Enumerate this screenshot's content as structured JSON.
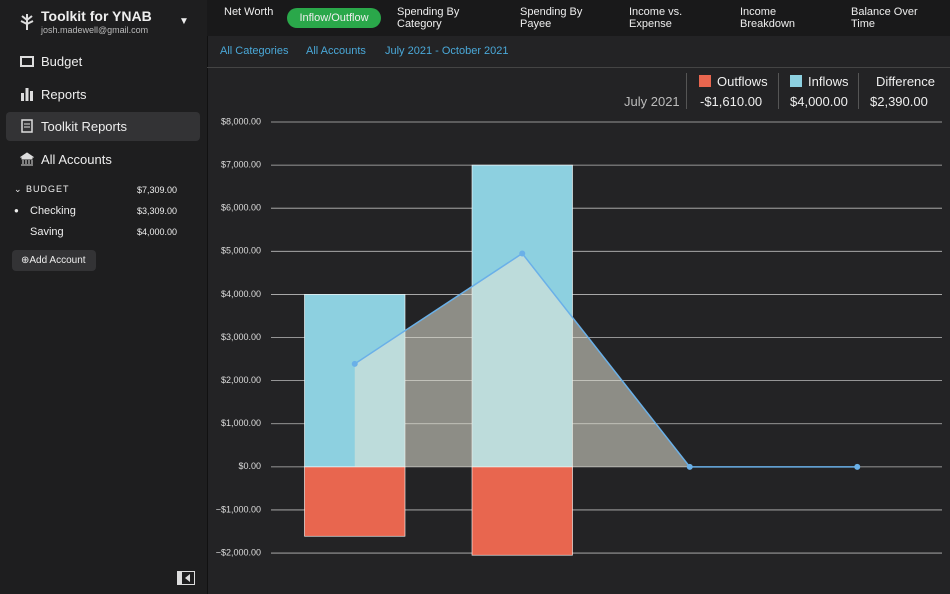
{
  "sidebar": {
    "app_title": "Toolkit for YNAB",
    "email": "josh.madewell@gmail.com",
    "nav": [
      "Budget",
      "Reports",
      "Toolkit Reports",
      "All Accounts"
    ],
    "budget_label": "BUDGET",
    "budget_total": "$7,309.00",
    "accounts": [
      {
        "name": "Checking",
        "balance": "$3,309.00"
      },
      {
        "name": "Saving",
        "balance": "$4,000.00"
      }
    ],
    "add_account": "Add Account"
  },
  "tabs": [
    "Net Worth",
    "Inflow/Outflow",
    "Spending By Category",
    "Spending By Payee",
    "Income vs. Expense",
    "Income Breakdown",
    "Balance Over Time"
  ],
  "filters": [
    "All Categories",
    "All Accounts",
    "July 2021 - October 2021"
  ],
  "summary": {
    "period": "July 2021",
    "values": [
      "-$1,610.00",
      "$4,000.00",
      "$2,390.00"
    ]
  },
  "chart_data": {
    "type": "bar",
    "categories": [
      null,
      null,
      null,
      null
    ],
    "series": [
      {
        "name": "Outflows",
        "color": "#e8664f",
        "values": [
          -1610,
          -2050,
          0,
          0
        ]
      },
      {
        "name": "Inflows",
        "color": "#8dd0e0",
        "values": [
          4000,
          7000,
          0,
          0
        ]
      },
      {
        "name": "Difference",
        "type": "line",
        "color": "#6ab0e8",
        "values": [
          2390,
          4950,
          0,
          0
        ]
      }
    ],
    "ylim": [
      -2950,
      8000
    ],
    "yticks": [
      {
        "value": -2000,
        "label": "−$2,000.00"
      },
      {
        "value": -1000,
        "label": "−$1,000.00"
      },
      {
        "value": 0,
        "label": "$0.00"
      },
      {
        "value": 1000,
        "label": "$1,000.00"
      },
      {
        "value": 2000,
        "label": "$2,000.00"
      },
      {
        "value": 3000,
        "label": "$3,000.00"
      },
      {
        "value": 4000,
        "label": "$4,000.00"
      },
      {
        "value": 5000,
        "label": "$5,000.00"
      },
      {
        "value": 6000,
        "label": "$6,000.00"
      },
      {
        "value": 7000,
        "label": "$7,000.00"
      },
      {
        "value": 8000,
        "label": "$8,000.00"
      }
    ],
    "grid": true
  }
}
